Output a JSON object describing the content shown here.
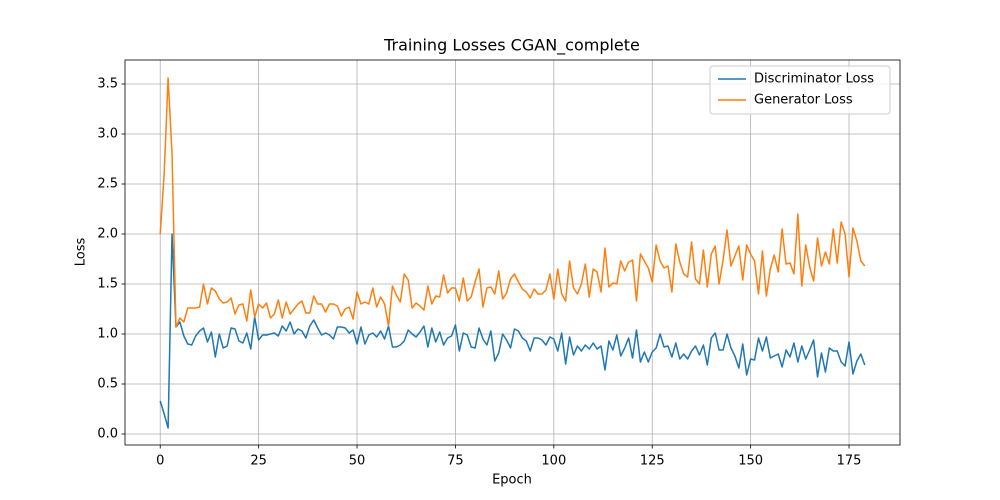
{
  "chart_data": {
    "type": "line",
    "title": "Training Losses CGAN_complete",
    "xlabel": "Epoch",
    "ylabel": "Loss",
    "x": [
      0,
      1,
      2,
      3,
      4,
      5,
      6,
      7,
      8,
      9,
      10,
      11,
      12,
      13,
      14,
      15,
      16,
      17,
      18,
      19,
      20,
      21,
      22,
      23,
      24,
      25,
      26,
      27,
      28,
      29,
      30,
      31,
      32,
      33,
      34,
      35,
      36,
      37,
      38,
      39,
      40,
      41,
      42,
      43,
      44,
      45,
      46,
      47,
      48,
      49,
      50,
      51,
      52,
      53,
      54,
      55,
      56,
      57,
      58,
      59,
      60,
      61,
      62,
      63,
      64,
      65,
      66,
      67,
      68,
      69,
      70,
      71,
      72,
      73,
      74,
      75,
      76,
      77,
      78,
      79,
      80,
      81,
      82,
      83,
      84,
      85,
      86,
      87,
      88,
      89,
      90,
      91,
      92,
      93,
      94,
      95,
      96,
      97,
      98,
      99,
      100,
      101,
      102,
      103,
      104,
      105,
      106,
      107,
      108,
      109,
      110,
      111,
      112,
      113,
      114,
      115,
      116,
      117,
      118,
      119,
      120,
      121,
      122,
      123,
      124,
      125,
      126,
      127,
      128,
      129,
      130,
      131,
      132,
      133,
      134,
      135,
      136,
      137,
      138,
      139,
      140,
      141,
      142,
      143,
      144,
      145,
      146,
      147,
      148,
      149,
      150,
      151,
      152,
      153,
      154,
      155,
      156,
      157,
      158,
      159,
      160,
      161,
      162,
      163,
      164,
      165,
      166,
      167,
      168,
      169,
      170,
      171,
      172,
      173,
      174,
      175,
      176,
      177,
      178,
      179
    ],
    "series": [
      {
        "name": "Discriminator Loss",
        "color": "#1f77b4",
        "values": [
          0.33,
          0.2,
          0.06,
          2.0,
          1.07,
          1.12,
          0.98,
          0.9,
          0.89,
          0.98,
          1.03,
          1.06,
          0.92,
          1.02,
          0.77,
          1.0,
          0.86,
          0.88,
          1.06,
          1.05,
          0.93,
          0.91,
          1.01,
          0.85,
          1.17,
          0.94,
          0.99,
          0.99,
          1.0,
          1.01,
          0.98,
          1.08,
          1.03,
          1.12,
          1.0,
          1.05,
          1.03,
          0.96,
          1.08,
          1.14,
          1.06,
          0.99,
          1.01,
          0.99,
          0.95,
          1.07,
          1.07,
          1.06,
          1.01,
          1.04,
          0.9,
          1.07,
          0.9,
          0.99,
          1.01,
          0.97,
          1.03,
          0.95,
          1.08,
          0.87,
          0.87,
          0.89,
          0.93,
          1.04,
          1.0,
          0.97,
          1.02,
          1.08,
          0.87,
          1.06,
          0.92,
          1.02,
          0.89,
          0.96,
          0.98,
          1.09,
          0.83,
          1.01,
          0.99,
          0.87,
          0.86,
          1.06,
          0.95,
          0.89,
          1.03,
          0.73,
          0.81,
          1.0,
          0.94,
          0.86,
          1.05,
          1.03,
          0.96,
          0.93,
          0.83,
          0.96,
          0.96,
          0.94,
          0.89,
          0.97,
          0.95,
          0.83,
          1.01,
          0.7,
          0.97,
          0.79,
          0.88,
          0.83,
          0.89,
          0.85,
          0.91,
          0.85,
          0.88,
          0.64,
          0.93,
          0.84,
          0.99,
          0.78,
          0.86,
          0.96,
          0.76,
          1.04,
          0.72,
          0.82,
          0.72,
          0.82,
          0.86,
          1.0,
          0.87,
          0.88,
          0.77,
          0.91,
          0.75,
          0.8,
          0.75,
          0.83,
          0.88,
          0.79,
          0.89,
          0.69,
          0.96,
          1.01,
          0.84,
          0.84,
          1.0,
          0.86,
          0.78,
          0.66,
          0.9,
          0.59,
          0.75,
          0.74,
          0.96,
          0.83,
          0.97,
          0.76,
          0.78,
          0.8,
          0.67,
          0.84,
          0.77,
          0.91,
          0.72,
          0.88,
          0.75,
          0.84,
          0.94,
          0.57,
          0.81,
          0.62,
          0.86,
          0.83,
          0.83,
          0.72,
          0.68,
          0.92,
          0.6,
          0.73,
          0.8,
          0.69
        ]
      },
      {
        "name": "Generator Loss",
        "color": "#ff7f0e",
        "values": [
          2.0,
          2.6,
          3.56,
          2.8,
          1.07,
          1.16,
          1.12,
          1.26,
          1.26,
          1.26,
          1.27,
          1.5,
          1.3,
          1.46,
          1.43,
          1.35,
          1.31,
          1.32,
          1.36,
          1.2,
          1.29,
          1.3,
          1.13,
          1.44,
          1.17,
          1.3,
          1.26,
          1.31,
          1.16,
          1.2,
          1.34,
          1.16,
          1.32,
          1.2,
          1.25,
          1.3,
          1.33,
          1.21,
          1.21,
          1.38,
          1.3,
          1.3,
          1.22,
          1.3,
          1.3,
          1.28,
          1.18,
          1.25,
          1.27,
          1.15,
          1.42,
          1.3,
          1.32,
          1.3,
          1.46,
          1.27,
          1.37,
          1.3,
          1.08,
          1.48,
          1.39,
          1.32,
          1.6,
          1.54,
          1.26,
          1.31,
          1.28,
          1.24,
          1.48,
          1.3,
          1.38,
          1.37,
          1.59,
          1.41,
          1.46,
          1.46,
          1.33,
          1.56,
          1.33,
          1.37,
          1.52,
          1.65,
          1.27,
          1.46,
          1.47,
          1.4,
          1.63,
          1.35,
          1.41,
          1.55,
          1.6,
          1.52,
          1.45,
          1.42,
          1.36,
          1.45,
          1.4,
          1.4,
          1.44,
          1.6,
          1.35,
          1.65,
          1.4,
          1.33,
          1.73,
          1.46,
          1.4,
          1.5,
          1.7,
          1.37,
          1.65,
          1.62,
          1.42,
          1.86,
          1.47,
          1.51,
          1.5,
          1.73,
          1.63,
          1.72,
          1.74,
          1.33,
          1.8,
          1.73,
          1.66,
          1.52,
          1.89,
          1.73,
          1.66,
          1.68,
          1.42,
          1.9,
          1.72,
          1.6,
          1.57,
          1.92,
          1.55,
          1.5,
          1.84,
          1.47,
          1.8,
          1.88,
          1.5,
          1.74,
          2.04,
          1.68,
          1.78,
          1.88,
          1.54,
          1.89,
          1.8,
          1.73,
          1.4,
          1.83,
          1.38,
          1.65,
          1.79,
          1.62,
          2.05,
          1.7,
          1.71,
          1.6,
          2.2,
          1.48,
          1.89,
          1.67,
          1.53,
          1.96,
          1.68,
          1.82,
          1.7,
          2.05,
          1.71,
          2.12,
          2.0,
          1.57,
          2.06,
          1.93,
          1.73,
          1.68
        ]
      }
    ],
    "xlim": [
      -8.95,
      187.95
    ],
    "xticks": [
      0,
      25,
      50,
      75,
      100,
      125,
      150,
      175
    ],
    "ylim": [
      -0.11,
      3.74
    ],
    "yticks": [
      {
        "value": 0,
        "label": "0.0"
      },
      0.5,
      {
        "value": 1,
        "label": "1.0"
      },
      1.5,
      {
        "value": 2,
        "label": "2.0"
      },
      2.5,
      {
        "value": 3,
        "label": "3.0"
      },
      3.5
    ],
    "grid": true,
    "legend": "upper right"
  }
}
